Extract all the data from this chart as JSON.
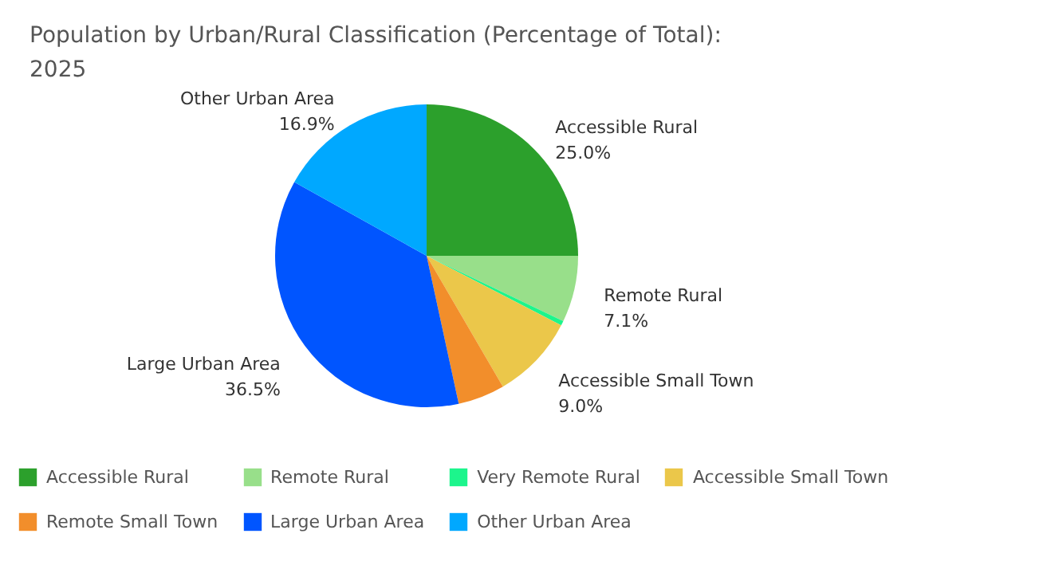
{
  "chart_data": {
    "type": "pie",
    "title": "Population by Urban/Rural Classification (Percentage of Total):\n2025",
    "categories": [
      "Accessible Rural",
      "Remote Rural",
      "Very Remote Rural",
      "Accessible Small Town",
      "Remote Small Town",
      "Large Urban Area",
      "Other Urban Area"
    ],
    "values": [
      25.0,
      7.1,
      0.5,
      9.0,
      5.0,
      36.5,
      16.9
    ],
    "colors": [
      "#2ca02c",
      "#98df8a",
      "#1cf58c",
      "#ebc74a",
      "#f28e2b",
      "#0055ff",
      "#00a8ff"
    ],
    "value_labels": [
      "25.0%",
      "7.1%",
      null,
      "9.0%",
      null,
      "36.5%",
      "16.9%"
    ],
    "legend": "bottom"
  }
}
